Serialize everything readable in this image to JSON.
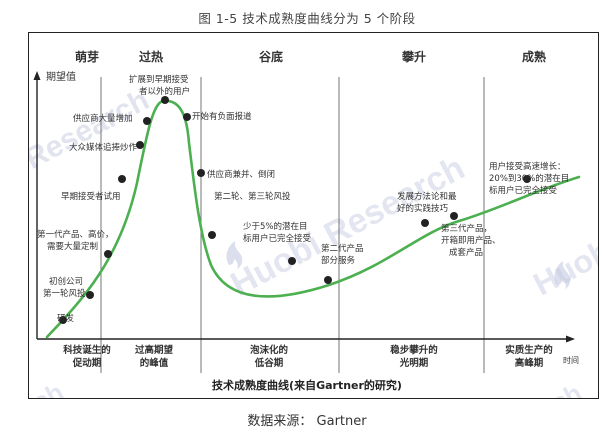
{
  "figure_title": "图 1-5  技术成熟度曲线分为 5 个阶段",
  "source_note": "数据来源： Gartner",
  "y_axis_label": "期望值",
  "x_axis_label": "时间",
  "x_axis_caption": "技术成熟度曲线(来自Gartner的研究)",
  "phases_top": [
    "萌芽",
    "过热",
    "谷底",
    "攀升",
    "成熟"
  ],
  "phases_bottom": [
    [
      "科技诞生的",
      "促动期"
    ],
    [
      "过高期望",
      "的峰值"
    ],
    [
      "泡沫化的",
      "低谷期"
    ],
    [
      "稳步攀升的",
      "光明期"
    ],
    [
      "实质生产的",
      "高峰期"
    ]
  ],
  "annotations": [
    {
      "lines": [
        "研发"
      ]
    },
    {
      "lines": [
        "初创公司",
        "第一轮风投"
      ]
    },
    {
      "lines": [
        "第一代产品、高价，",
        "需要大量定制"
      ]
    },
    {
      "lines": [
        "早期接受者试用"
      ]
    },
    {
      "lines": [
        "大众媒体追捧炒作"
      ]
    },
    {
      "lines": [
        "供应商大量增加"
      ]
    },
    {
      "lines": [
        "扩展到早期接受",
        "者以外的用户"
      ]
    },
    {
      "lines": [
        "开始有负面报道"
      ]
    },
    {
      "lines": [
        "供应商兼并、倒闭"
      ]
    },
    {
      "lines": [
        "第二轮、第三轮风投"
      ]
    },
    {
      "lines": [
        "少于5%的潜在目",
        "标用户已完全接受"
      ]
    },
    {
      "lines": [
        "第二代产品",
        "部分服务"
      ]
    },
    {
      "lines": [
        "发展方法论和最",
        "好的实践技巧"
      ]
    },
    {
      "lines": [
        "第三代产品，",
        "开箱即用产品、",
        "成套产品"
      ]
    },
    {
      "lines": [
        "用户接受高速增长：",
        "20%到30%的潜在目",
        "标用户已完全接受"
      ]
    }
  ],
  "watermarks": [
    "Research",
    "Huobi Research",
    "Huobi",
    "rch",
    "rch",
    "ch"
  ],
  "colors": {
    "curve": "#4caf50",
    "dot": "#222222",
    "text": "#333333",
    "divider": "#555555",
    "watermark": "#cfd3e6"
  }
}
